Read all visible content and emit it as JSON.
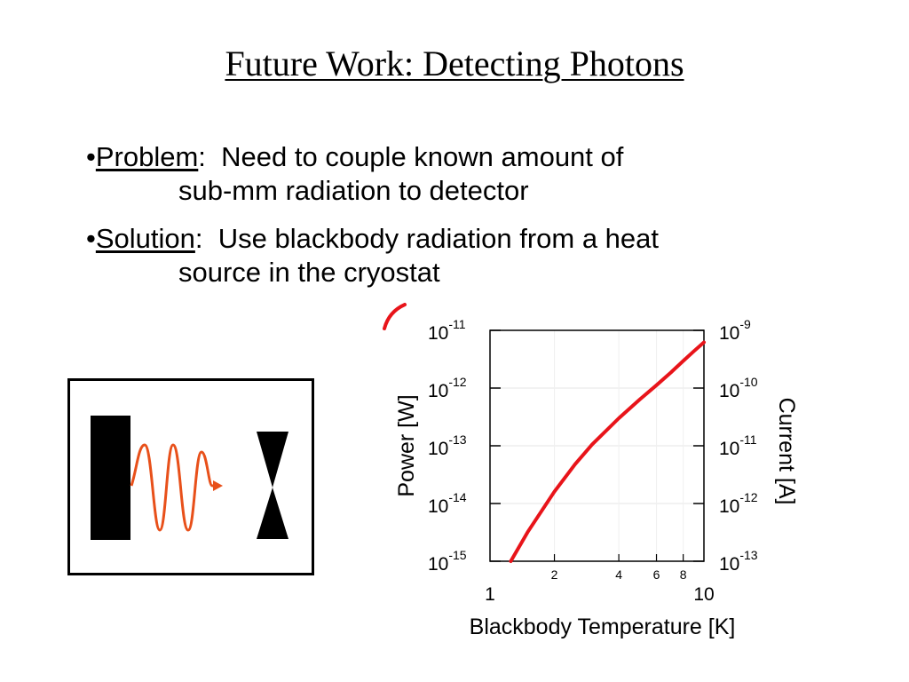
{
  "title": "Future Work: Detecting Photons",
  "bullets": [
    {
      "marker": "•",
      "lead": "Problem",
      "sep": ":  ",
      "text": "Need to couple known amount of",
      "continuation": "sub-mm radiation to detector"
    },
    {
      "marker": "•",
      "lead": "Solution",
      "sep": ":  ",
      "text": "Use blackbody radiation from a heat",
      "continuation": "source in the cryostat"
    }
  ],
  "schematic": {
    "wave_color": "#e8501a",
    "body_color": "#000000"
  },
  "chart_data": {
    "type": "line",
    "title": "",
    "xlabel": "Blackbody Temperature [K]",
    "ylabel": "Power [W]",
    "y2label": "Current [A]",
    "xscale": "log",
    "yscale": "log",
    "xlim": [
      1,
      10
    ],
    "ylim": [
      1e-15,
      1e-11
    ],
    "x_major_ticks": [
      {
        "value": 1,
        "label": "1"
      },
      {
        "value": 10,
        "label": "10"
      }
    ],
    "x_minor_ticks": [
      {
        "value": 2,
        "label": "2"
      },
      {
        "value": 4,
        "label": "4"
      },
      {
        "value": 6,
        "label": "6"
      },
      {
        "value": 8,
        "label": "8"
      }
    ],
    "y_ticks": [
      {
        "value": 1e-11,
        "base": "10",
        "exp": "-11"
      },
      {
        "value": 1e-12,
        "base": "10",
        "exp": "-12"
      },
      {
        "value": 1e-13,
        "base": "10",
        "exp": "-13"
      },
      {
        "value": 1e-14,
        "base": "10",
        "exp": "-14"
      },
      {
        "value": 1e-15,
        "base": "10",
        "exp": "-15"
      }
    ],
    "y2_ticks": [
      {
        "value": 1e-09,
        "base": "10",
        "exp": "-9"
      },
      {
        "value": 1e-10,
        "base": "10",
        "exp": "-10"
      },
      {
        "value": 1e-11,
        "base": "10",
        "exp": "-11"
      },
      {
        "value": 1e-12,
        "base": "10",
        "exp": "-12"
      },
      {
        "value": 1e-13,
        "base": "10",
        "exp": "-13"
      }
    ],
    "grid": true,
    "series": [
      {
        "color": "#e8141a",
        "x": [
          1.25,
          1.5,
          2.0,
          2.5,
          3.0,
          4.0,
          5.0,
          6.0,
          7.0,
          8.0,
          9.0,
          10.0
        ],
        "y": [
          1e-15,
          3.2e-15,
          1.6e-14,
          4.8e-14,
          1.05e-13,
          3e-13,
          6.3e-13,
          1.12e-12,
          1.86e-12,
          2.95e-12,
          4.4e-12,
          6.2e-12
        ]
      }
    ]
  }
}
